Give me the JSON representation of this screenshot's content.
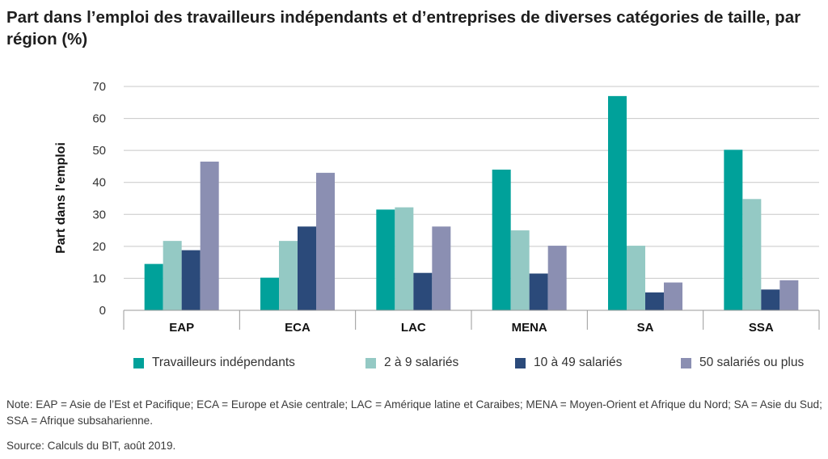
{
  "title": "Part dans l’emploi des travailleurs indépendants et d’entreprises de diverses catégories de taille, par région (%)",
  "note": "Note: EAP = Asie de l’Est et Pacifique; ECA = Europe et Asie centrale; LAC = Amérique latine et Caraibes; MENA = Moyen-Orient et Afrique du Nord; SA = Asie du Sud; SSA = Afrique subsaharienne.",
  "source": "Source: Calculs du BIT, août 2019.",
  "chart_data": {
    "type": "bar",
    "title": "Part dans l’emploi des travailleurs indépendants et d’entreprises de diverses catégories de taille, par région (%)",
    "xlabel": "",
    "ylabel": "Part dans l’emploi",
    "ylim": [
      0,
      70
    ],
    "yticks": [
      0,
      10,
      20,
      30,
      40,
      50,
      60,
      70
    ],
    "grid": true,
    "legend_position": "bottom",
    "categories": [
      "EAP",
      "ECA",
      "LAC",
      "MENA",
      "SA",
      "SSA"
    ],
    "series": [
      {
        "name": "Travailleurs indépendants",
        "color": "#00a19a",
        "values": [
          14.5,
          10.2,
          31.5,
          44,
          67,
          50.2
        ]
      },
      {
        "name": "2 à 9 salariés",
        "color": "#94c9c4",
        "values": [
          21.7,
          21.7,
          32.2,
          25,
          20.2,
          34.8
        ]
      },
      {
        "name": "10 à 49 salariés",
        "color": "#2b4a7a",
        "values": [
          18.8,
          26.2,
          11.7,
          11.5,
          5.6,
          6.5
        ]
      },
      {
        "name": "50 salariés ou plus",
        "color": "#8b8fb2",
        "values": [
          46.5,
          43,
          26.2,
          20.2,
          8.7,
          9.4
        ]
      }
    ]
  }
}
